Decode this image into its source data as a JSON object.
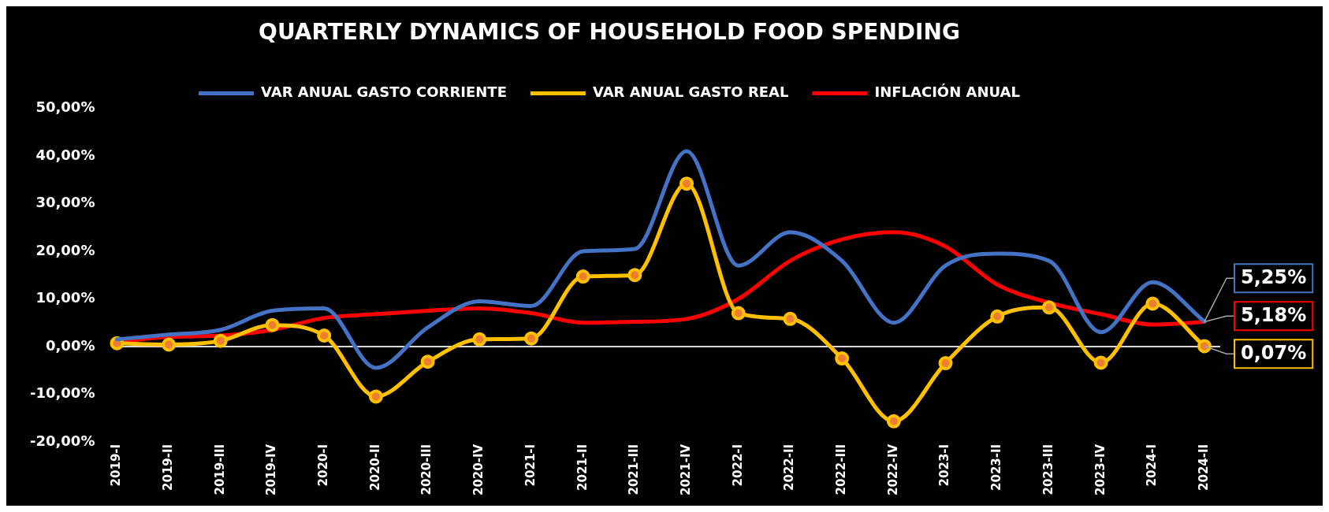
{
  "chart_data": {
    "type": "line",
    "title": "QUARTERLY DYNAMICS OF HOUSEHOLD FOOD SPENDING",
    "categories": [
      "2019-I",
      "2019-II",
      "2019-III",
      "2019-IV",
      "2020-I",
      "2020-II",
      "2020-III",
      "2020-IV",
      "2021-I",
      "2021-II",
      "2021-III",
      "2021-IV",
      "2022-I",
      "2022-II",
      "2022-III",
      "2022-IV",
      "2023-I",
      "2023-II",
      "2023-III",
      "2023-IV",
      "2024-I",
      "2024-II"
    ],
    "series": [
      {
        "name": "VAR ANUAL GASTO CORRIENTE",
        "color": "#4472c4",
        "marker": "none",
        "values": [
          1.5,
          2.5,
          3.5,
          7.5,
          8,
          -4.5,
          4,
          9.5,
          8.5,
          20,
          20.5,
          41,
          17,
          24,
          18,
          5,
          17,
          19.5,
          18,
          3,
          13.5,
          5.25
        ],
        "value_labels": [
          null,
          null,
          null,
          null,
          null,
          null,
          null,
          null,
          null,
          null,
          null,
          null,
          null,
          null,
          null,
          null,
          null,
          null,
          null,
          null,
          null,
          "5,25%"
        ]
      },
      {
        "name": "VAR ANUAL GASTO REAL",
        "color": "#ffc000",
        "marker": "circle",
        "values": [
          0.7,
          0.4,
          1.2,
          4.5,
          2.3,
          -10.5,
          -3.2,
          1.5,
          1.7,
          14.7,
          15,
          34.2,
          7,
          5.8,
          -2.5,
          -15.7,
          -3.5,
          6.3,
          8.2,
          -3.4,
          9,
          0.07
        ],
        "value_labels": [
          null,
          null,
          null,
          null,
          null,
          null,
          null,
          null,
          null,
          null,
          null,
          null,
          null,
          null,
          null,
          null,
          null,
          null,
          null,
          null,
          null,
          "0,07%"
        ]
      },
      {
        "name": "INFLACIÓN ANUAL",
        "color": "#ff0000",
        "marker": "none",
        "values": [
          1,
          2,
          2.3,
          3.5,
          6,
          6.8,
          7.5,
          8,
          7,
          5,
          5.2,
          5.8,
          10,
          18,
          22.5,
          24,
          21,
          13,
          9.2,
          6.8,
          4.6,
          5.18
        ],
        "value_labels": [
          null,
          null,
          null,
          null,
          null,
          null,
          null,
          null,
          null,
          null,
          null,
          null,
          null,
          null,
          null,
          null,
          null,
          null,
          null,
          null,
          null,
          "5,18%"
        ]
      }
    ],
    "ylim": [
      -20,
      50
    ],
    "yticks": [
      {
        "value": -20,
        "label": "-20,00%"
      },
      {
        "value": -10,
        "label": "-10,00%"
      },
      {
        "value": 0,
        "label": "0,00%"
      },
      {
        "value": 10,
        "label": "10,00%"
      },
      {
        "value": 20,
        "label": "20,00%"
      },
      {
        "value": 30,
        "label": "30,00%"
      },
      {
        "value": 40,
        "label": "40,00%"
      },
      {
        "value": 50,
        "label": "50,00%"
      }
    ],
    "ref_lines": [
      {
        "axis": "y",
        "value": 0,
        "color": "#d9d9d9"
      }
    ],
    "grid": false,
    "legend": "top",
    "line_style": "solid"
  }
}
